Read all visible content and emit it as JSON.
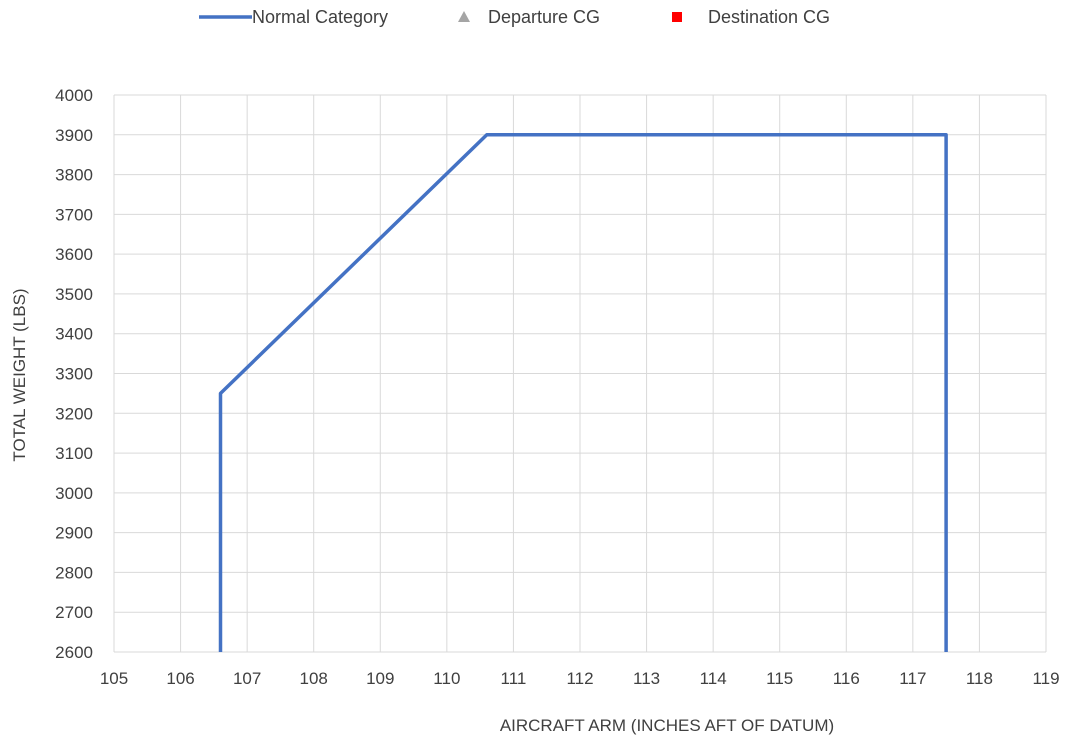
{
  "chart_data": {
    "type": "line",
    "title": "",
    "xlabel": "AIRCRAFT ARM (INCHES AFT OF DATUM)",
    "ylabel": "TOTAL WEIGHT (LBS)",
    "xlim": [
      105,
      119
    ],
    "ylim": [
      2600,
      4000
    ],
    "x_ticks": [
      "105",
      "106",
      "107",
      "108",
      "109",
      "110",
      "111",
      "112",
      "113",
      "114",
      "115",
      "116",
      "117",
      "118",
      "119"
    ],
    "y_ticks": [
      "2600",
      "2700",
      "2800",
      "2900",
      "3000",
      "3100",
      "3200",
      "3300",
      "3400",
      "3500",
      "3600",
      "3700",
      "3800",
      "3900",
      "4000"
    ],
    "grid": true,
    "legend_position": "top",
    "legend": [
      {
        "name": "Normal Category",
        "marker": "line",
        "color": "#4472C4"
      },
      {
        "name": "Departure CG",
        "marker": "triangle",
        "color": "#A5A5A5"
      },
      {
        "name": "Destination CG",
        "marker": "square",
        "color": "#FF0000"
      }
    ],
    "series": [
      {
        "name": "Normal Category",
        "color": "#4472C4",
        "points": [
          {
            "x": 106.6,
            "y": 2600
          },
          {
            "x": 106.6,
            "y": 3250
          },
          {
            "x": 110.6,
            "y": 3900
          },
          {
            "x": 117.5,
            "y": 3900
          },
          {
            "x": 117.5,
            "y": 2600
          }
        ]
      },
      {
        "name": "Departure CG",
        "color": "#A5A5A5",
        "points": []
      },
      {
        "name": "Destination CG",
        "color": "#FF0000",
        "points": []
      }
    ]
  }
}
